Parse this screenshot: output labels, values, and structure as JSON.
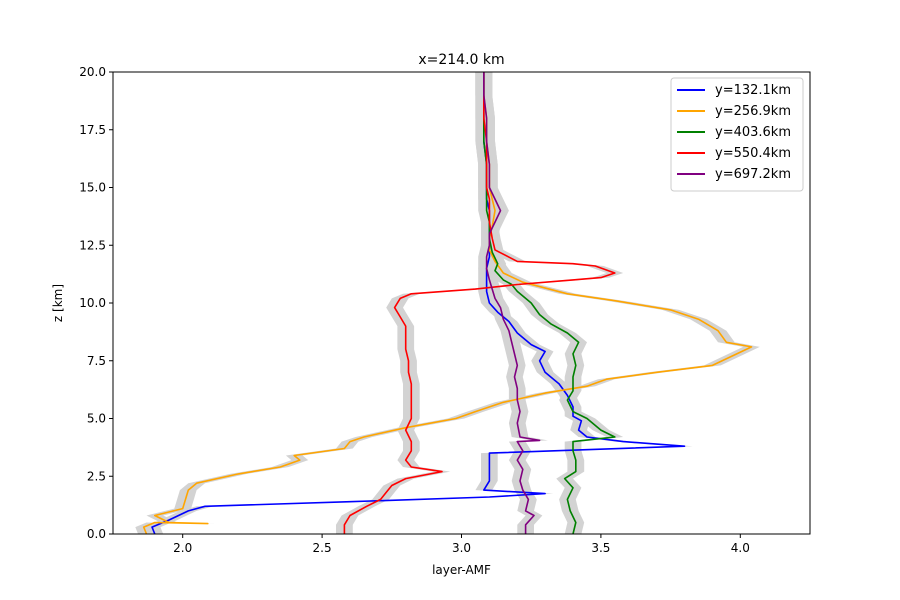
{
  "chart_data": {
    "type": "line",
    "title": "x=214.0 km",
    "xlabel": "layer-AMF",
    "ylabel": "z [km]",
    "xlim": [
      1.75,
      4.25
    ],
    "ylim": [
      0.0,
      20.0
    ],
    "xticks": [
      "2.0",
      "2.5",
      "3.0",
      "3.5",
      "4.0"
    ],
    "xtick_values": [
      2.0,
      2.5,
      3.0,
      3.5,
      4.0
    ],
    "yticks": [
      "0.0",
      "2.5",
      "5.0",
      "7.5",
      "10.0",
      "12.5",
      "15.0",
      "17.5",
      "20.0"
    ],
    "ytick_values": [
      0.0,
      2.5,
      5.0,
      7.5,
      10.0,
      12.5,
      15.0,
      17.5,
      20.0
    ],
    "grid": false,
    "legend_position": "top-right",
    "uncertainty_band_color": "#d3d3d3",
    "series": [
      {
        "name": "y=132.1km",
        "color": "#0000ff",
        "points": [
          [
            1.9,
            0.0
          ],
          [
            1.89,
            0.3
          ],
          [
            1.95,
            0.6
          ],
          [
            2.02,
            1.0
          ],
          [
            2.08,
            1.2
          ],
          [
            2.6,
            1.4
          ],
          [
            3.1,
            1.6
          ],
          [
            3.3,
            1.75
          ],
          [
            3.08,
            1.9
          ],
          [
            3.1,
            2.3
          ],
          [
            3.1,
            2.8
          ],
          [
            3.1,
            3.2
          ],
          [
            3.1,
            3.5
          ],
          [
            3.8,
            3.8
          ],
          [
            3.58,
            4.0
          ],
          [
            3.45,
            4.2
          ],
          [
            3.42,
            4.5
          ],
          [
            3.43,
            4.9
          ],
          [
            3.4,
            5.1
          ],
          [
            3.4,
            5.5
          ],
          [
            3.38,
            6.0
          ],
          [
            3.35,
            6.5
          ],
          [
            3.3,
            7.0
          ],
          [
            3.28,
            7.5
          ],
          [
            3.3,
            7.9
          ],
          [
            3.25,
            8.2
          ],
          [
            3.2,
            8.7
          ],
          [
            3.17,
            9.2
          ],
          [
            3.13,
            9.6
          ],
          [
            3.1,
            10.0
          ],
          [
            3.09,
            10.5
          ],
          [
            3.09,
            11.0
          ],
          [
            3.09,
            11.5
          ],
          [
            3.1,
            12.0
          ],
          [
            3.1,
            12.5
          ],
          [
            3.1,
            13.0
          ],
          [
            3.1,
            13.5
          ],
          [
            3.1,
            14.0
          ],
          [
            3.09,
            14.5
          ],
          [
            3.09,
            15.0
          ],
          [
            3.09,
            16.0
          ],
          [
            3.08,
            17.0
          ],
          [
            3.08,
            18.0
          ],
          [
            3.08,
            19.0
          ],
          [
            3.08,
            20.0
          ]
        ]
      },
      {
        "name": "y=256.9km",
        "color": "#ffa500",
        "points": [
          [
            1.87,
            0.0
          ],
          [
            1.86,
            0.3
          ],
          [
            1.9,
            0.5
          ],
          [
            2.09,
            0.45
          ],
          [
            1.95,
            0.5
          ],
          [
            1.9,
            0.8
          ],
          [
            2.0,
            1.1
          ],
          [
            2.01,
            1.5
          ],
          [
            2.02,
            1.9
          ],
          [
            2.05,
            2.2
          ],
          [
            2.2,
            2.6
          ],
          [
            2.35,
            2.9
          ],
          [
            2.42,
            3.2
          ],
          [
            2.4,
            3.4
          ],
          [
            2.58,
            3.7
          ],
          [
            2.6,
            4.0
          ],
          [
            2.65,
            4.2
          ],
          [
            2.8,
            4.6
          ],
          [
            2.98,
            5.0
          ],
          [
            3.05,
            5.3
          ],
          [
            3.15,
            5.7
          ],
          [
            3.3,
            6.1
          ],
          [
            3.45,
            6.4
          ],
          [
            3.52,
            6.7
          ],
          [
            3.7,
            7.0
          ],
          [
            3.9,
            7.3
          ],
          [
            4.04,
            8.1
          ],
          [
            3.95,
            8.3
          ],
          [
            3.92,
            8.8
          ],
          [
            3.85,
            9.3
          ],
          [
            3.75,
            9.7
          ],
          [
            3.55,
            10.1
          ],
          [
            3.38,
            10.4
          ],
          [
            3.22,
            10.9
          ],
          [
            3.15,
            11.3
          ],
          [
            3.12,
            11.8
          ],
          [
            3.1,
            12.3
          ],
          [
            3.1,
            12.8
          ],
          [
            3.11,
            13.3
          ],
          [
            3.12,
            14.0
          ],
          [
            3.11,
            14.5
          ],
          [
            3.1,
            15.0
          ],
          [
            3.1,
            16.0
          ],
          [
            3.09,
            17.0
          ],
          [
            3.09,
            18.0
          ],
          [
            3.08,
            19.0
          ],
          [
            3.08,
            20.0
          ]
        ]
      },
      {
        "name": "y=403.6km",
        "color": "#008000",
        "points": [
          [
            3.4,
            0.0
          ],
          [
            3.41,
            0.5
          ],
          [
            3.39,
            1.0
          ],
          [
            3.38,
            1.5
          ],
          [
            3.4,
            2.0
          ],
          [
            3.37,
            2.4
          ],
          [
            3.41,
            2.7
          ],
          [
            3.41,
            3.2
          ],
          [
            3.4,
            3.6
          ],
          [
            3.4,
            4.0
          ],
          [
            3.55,
            4.2
          ],
          [
            3.5,
            4.5
          ],
          [
            3.45,
            5.0
          ],
          [
            3.4,
            5.3
          ],
          [
            3.38,
            5.8
          ],
          [
            3.4,
            6.2
          ],
          [
            3.4,
            6.8
          ],
          [
            3.41,
            7.3
          ],
          [
            3.4,
            7.8
          ],
          [
            3.42,
            8.3
          ],
          [
            3.38,
            8.7
          ],
          [
            3.32,
            9.1
          ],
          [
            3.28,
            9.5
          ],
          [
            3.25,
            10.0
          ],
          [
            3.2,
            10.5
          ],
          [
            3.18,
            10.8
          ],
          [
            3.15,
            11.0
          ],
          [
            3.12,
            11.4
          ],
          [
            3.13,
            11.7
          ],
          [
            3.11,
            12.2
          ],
          [
            3.1,
            12.8
          ],
          [
            3.1,
            13.5
          ],
          [
            3.09,
            14.0
          ],
          [
            3.09,
            15.0
          ],
          [
            3.09,
            16.0
          ],
          [
            3.08,
            17.0
          ],
          [
            3.08,
            18.0
          ],
          [
            3.08,
            19.0
          ],
          [
            3.08,
            20.0
          ]
        ]
      },
      {
        "name": "y=550.4km",
        "color": "#ff0000",
        "points": [
          [
            2.58,
            0.0
          ],
          [
            2.58,
            0.4
          ],
          [
            2.6,
            0.8
          ],
          [
            2.66,
            1.2
          ],
          [
            2.71,
            1.5
          ],
          [
            2.73,
            1.8
          ],
          [
            2.75,
            2.1
          ],
          [
            2.8,
            2.4
          ],
          [
            2.93,
            2.7
          ],
          [
            2.82,
            2.9
          ],
          [
            2.8,
            3.2
          ],
          [
            2.82,
            3.6
          ],
          [
            2.82,
            4.0
          ],
          [
            2.8,
            4.5
          ],
          [
            2.82,
            5.0
          ],
          [
            2.82,
            5.5
          ],
          [
            2.82,
            6.0
          ],
          [
            2.82,
            6.5
          ],
          [
            2.81,
            7.0
          ],
          [
            2.81,
            7.5
          ],
          [
            2.8,
            8.0
          ],
          [
            2.8,
            8.5
          ],
          [
            2.8,
            9.0
          ],
          [
            2.78,
            9.4
          ],
          [
            2.76,
            9.8
          ],
          [
            2.78,
            10.2
          ],
          [
            2.82,
            10.4
          ],
          [
            3.05,
            10.6
          ],
          [
            3.2,
            10.8
          ],
          [
            3.4,
            11.0
          ],
          [
            3.5,
            11.1
          ],
          [
            3.55,
            11.3
          ],
          [
            3.48,
            11.6
          ],
          [
            3.4,
            11.7
          ],
          [
            3.2,
            11.8
          ],
          [
            3.12,
            12.3
          ],
          [
            3.11,
            12.8
          ],
          [
            3.1,
            13.5
          ],
          [
            3.1,
            14.5
          ],
          [
            3.09,
            15.0
          ],
          [
            3.09,
            16.0
          ],
          [
            3.09,
            17.0
          ],
          [
            3.08,
            18.0
          ],
          [
            3.08,
            19.0
          ],
          [
            3.08,
            20.0
          ]
        ]
      },
      {
        "name": "y=697.2km",
        "color": "#800080",
        "points": [
          [
            3.23,
            0.0
          ],
          [
            3.23,
            0.4
          ],
          [
            3.26,
            0.8
          ],
          [
            3.23,
            1.0
          ],
          [
            3.24,
            1.5
          ],
          [
            3.22,
            1.9
          ],
          [
            3.21,
            2.3
          ],
          [
            3.22,
            2.8
          ],
          [
            3.2,
            3.2
          ],
          [
            3.22,
            3.6
          ],
          [
            3.2,
            4.0
          ],
          [
            3.28,
            4.05
          ],
          [
            3.21,
            4.2
          ],
          [
            3.2,
            4.8
          ],
          [
            3.21,
            5.3
          ],
          [
            3.2,
            5.8
          ],
          [
            3.2,
            6.3
          ],
          [
            3.19,
            6.8
          ],
          [
            3.2,
            7.3
          ],
          [
            3.19,
            7.8
          ],
          [
            3.18,
            8.3
          ],
          [
            3.17,
            8.8
          ],
          [
            3.15,
            9.3
          ],
          [
            3.14,
            9.8
          ],
          [
            3.12,
            10.2
          ],
          [
            3.11,
            10.6
          ],
          [
            3.1,
            11.0
          ],
          [
            3.09,
            11.5
          ],
          [
            3.09,
            12.0
          ],
          [
            3.1,
            12.5
          ],
          [
            3.1,
            13.0
          ],
          [
            3.12,
            13.5
          ],
          [
            3.14,
            14.0
          ],
          [
            3.12,
            14.5
          ],
          [
            3.1,
            15.0
          ],
          [
            3.1,
            16.0
          ],
          [
            3.09,
            17.0
          ],
          [
            3.09,
            18.0
          ],
          [
            3.08,
            19.0
          ],
          [
            3.08,
            20.0
          ]
        ]
      }
    ]
  }
}
